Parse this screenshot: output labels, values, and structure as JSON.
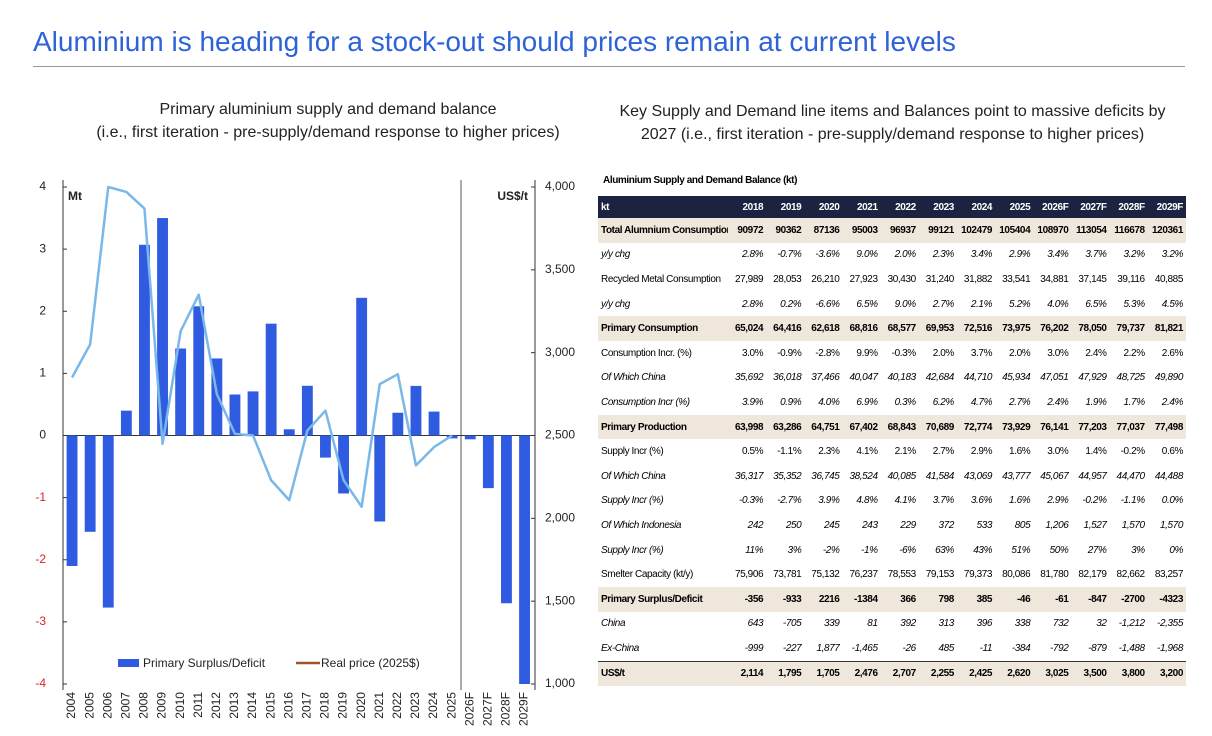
{
  "header": {
    "title": "Aluminium is heading for a stock-out should prices remain at current levels"
  },
  "chart_data": {
    "type": "bar_line",
    "title": [
      "Primary aluminium supply and demand balance",
      "(i.e., first iteration - pre-supply/demand response to higher prices)"
    ],
    "ylabel": "Mt",
    "y2label": "US$/t",
    "categories": [
      "2004",
      "2005",
      "2006",
      "2007",
      "2008",
      "2009",
      "2010",
      "2011",
      "2012",
      "2013",
      "2014",
      "2015",
      "2016",
      "2017",
      "2018",
      "2019",
      "2020",
      "2021",
      "2022",
      "2023",
      "2024",
      "2025",
      "2026F",
      "2027F",
      "2028F",
      "2029F"
    ],
    "series": [
      {
        "name": "Primary Surplus/Deficit",
        "type": "bar",
        "color": "#2f5be0",
        "values": [
          -2.1,
          -1.55,
          -2.77,
          0.4,
          3.07,
          3.5,
          1.4,
          2.08,
          1.24,
          0.66,
          0.71,
          1.8,
          0.1,
          0.8,
          -0.356,
          -0.933,
          2.216,
          -1.384,
          0.366,
          0.798,
          0.385,
          -0.046,
          -0.061,
          -0.847,
          -2.7,
          -4.323
        ]
      },
      {
        "name": "Real price (2025$)",
        "type": "line",
        "axis": "y2",
        "color": "#7ab8ea",
        "legend_color": "#a0522d",
        "values": [
          2850,
          3050,
          4000,
          3970,
          3870,
          2450,
          3130,
          3350,
          2750,
          2510,
          2500,
          2230,
          2110,
          2530,
          2650,
          2230,
          2070,
          2810,
          2870,
          2320,
          2430,
          2500,
          null,
          null,
          null,
          null
        ]
      }
    ],
    "ylim": [
      -4,
      4
    ],
    "yticks": [
      -4,
      -3,
      -2,
      -1,
      0,
      1,
      2,
      3,
      4
    ],
    "y2lim": [
      1000,
      4000
    ],
    "y2ticks": [
      {
        "value": 1000,
        "label": "1,000"
      },
      {
        "value": 1500,
        "label": "1,500"
      },
      {
        "value": 2000,
        "label": "2,000"
      },
      {
        "value": 2500,
        "label": "2,500"
      },
      {
        "value": 3000,
        "label": "3,000"
      },
      {
        "value": 3500,
        "label": "3,500"
      },
      {
        "value": 4000,
        "label": "4,000"
      }
    ],
    "negative_tick_color": "#d22"
  },
  "table": {
    "title": "Key Supply and Demand line items and Balances point to massive deficits by 2027 (i.e., first iteration - pre-supply/demand response to higher prices)",
    "caption": "Aluminium Supply and Demand Balance (kt)",
    "columns": [
      "kt",
      "2018",
      "2019",
      "2020",
      "2021",
      "2022",
      "2023",
      "2024",
      "2025",
      "2026F",
      "2027F",
      "2028F",
      "2029F"
    ],
    "rows": [
      {
        "style": "bold",
        "cells": [
          "Total Alumnium Consumption",
          "90972",
          "90362",
          "87136",
          "95003",
          "96937",
          "99121",
          "102479",
          "105404",
          "108970",
          "113054",
          "116678",
          "120361"
        ]
      },
      {
        "style": "italic",
        "cells": [
          "y/y chg",
          "2.8%",
          "-0.7%",
          "-3.6%",
          "9.0%",
          "2.0%",
          "2.3%",
          "3.4%",
          "2.9%",
          "3.4%",
          "3.7%",
          "3.2%",
          "3.2%"
        ]
      },
      {
        "style": "plain",
        "cells": [
          "Recycled Metal Consumption",
          "27,989",
          "28,053",
          "26,210",
          "27,923",
          "30,430",
          "31,240",
          "31,882",
          "33,541",
          "34,881",
          "37,145",
          "39,116",
          "40,885"
        ]
      },
      {
        "style": "italic",
        "cells": [
          "y/y chg",
          "2.8%",
          "0.2%",
          "-6.6%",
          "6.5%",
          "9.0%",
          "2.7%",
          "2.1%",
          "5.2%",
          "4.0%",
          "6.5%",
          "5.3%",
          "4.5%"
        ]
      },
      {
        "style": "bold",
        "cells": [
          "Primary Consumption",
          "65,024",
          "64,416",
          "62,618",
          "68,816",
          "68,577",
          "69,953",
          "72,516",
          "73,975",
          "76,202",
          "78,050",
          "79,737",
          "81,821"
        ]
      },
      {
        "style": "plain",
        "cells": [
          "Consumption Incr. (%)",
          "3.0%",
          "-0.9%",
          "-2.8%",
          "9.9%",
          "-0.3%",
          "2.0%",
          "3.7%",
          "2.0%",
          "3.0%",
          "2.4%",
          "2.2%",
          "2.6%"
        ]
      },
      {
        "style": "italic",
        "cells": [
          "Of Which China",
          "35,692",
          "36,018",
          "37,466",
          "40,047",
          "40,183",
          "42,684",
          "44,710",
          "45,934",
          "47,051",
          "47,929",
          "48,725",
          "49,890"
        ]
      },
      {
        "style": "italic",
        "cells": [
          "Consumption Incr (%)",
          "3.9%",
          "0.9%",
          "4.0%",
          "6.9%",
          "0.3%",
          "6.2%",
          "4.7%",
          "2.7%",
          "2.4%",
          "1.9%",
          "1.7%",
          "2.4%"
        ]
      },
      {
        "style": "bold",
        "cells": [
          "Primary Production",
          "63,998",
          "63,286",
          "64,751",
          "67,402",
          "68,843",
          "70,689",
          "72,774",
          "73,929",
          "76,141",
          "77,203",
          "77,037",
          "77,498"
        ]
      },
      {
        "style": "plain",
        "cells": [
          "Supply Incr (%)",
          "0.5%",
          "-1.1%",
          "2.3%",
          "4.1%",
          "2.1%",
          "2.7%",
          "2.9%",
          "1.6%",
          "3.0%",
          "1.4%",
          "-0.2%",
          "0.6%"
        ]
      },
      {
        "style": "italic",
        "cells": [
          "Of Which China",
          "36,317",
          "35,352",
          "36,745",
          "38,524",
          "40,085",
          "41,584",
          "43,069",
          "43,777",
          "45,067",
          "44,957",
          "44,470",
          "44,488"
        ]
      },
      {
        "style": "italic",
        "cells": [
          "Supply Incr (%)",
          "-0.3%",
          "-2.7%",
          "3.9%",
          "4.8%",
          "4.1%",
          "3.7%",
          "3.6%",
          "1.6%",
          "2.9%",
          "-0.2%",
          "-1.1%",
          "0.0%"
        ]
      },
      {
        "style": "italic",
        "cells": [
          "Of Which Indonesia",
          "242",
          "250",
          "245",
          "243",
          "229",
          "372",
          "533",
          "805",
          "1,206",
          "1,527",
          "1,570",
          "1,570"
        ]
      },
      {
        "style": "italic",
        "cells": [
          "Supply Incr (%)",
          "11%",
          "3%",
          "-2%",
          "-1%",
          "-6%",
          "63%",
          "43%",
          "51%",
          "50%",
          "27%",
          "3%",
          "0%"
        ]
      },
      {
        "style": "plain",
        "cells": [
          "Smelter Capacity (kt/y)",
          "75,906",
          "73,781",
          "75,132",
          "76,237",
          "78,553",
          "79,153",
          "79,373",
          "80,086",
          "81,780",
          "82,179",
          "82,662",
          "83,257"
        ]
      },
      {
        "style": "bold",
        "cells": [
          "Primary Surplus/Deficit",
          "-356",
          "-933",
          "2216",
          "-1384",
          "366",
          "798",
          "385",
          "-46",
          "-61",
          "-847",
          "-2700",
          "-4323"
        ]
      },
      {
        "style": "italic",
        "cells": [
          "China",
          "643",
          "-705",
          "339",
          "81",
          "392",
          "313",
          "396",
          "338",
          "732",
          "32",
          "-1,212",
          "-2,355"
        ]
      },
      {
        "style": "italic",
        "cells": [
          "Ex-China",
          "-999",
          "-227",
          "1,877",
          "-1,465",
          "-26",
          "485",
          "-11",
          "-384",
          "-792",
          "-879",
          "-1,488",
          "-1,968"
        ]
      },
      {
        "style": "total",
        "cells": [
          "US$/t",
          "2,114",
          "1,795",
          "1,705",
          "2,476",
          "2,707",
          "2,255",
          "2,425",
          "2,620",
          "3,025",
          "3,500",
          "3,800",
          "3,200"
        ]
      }
    ]
  }
}
